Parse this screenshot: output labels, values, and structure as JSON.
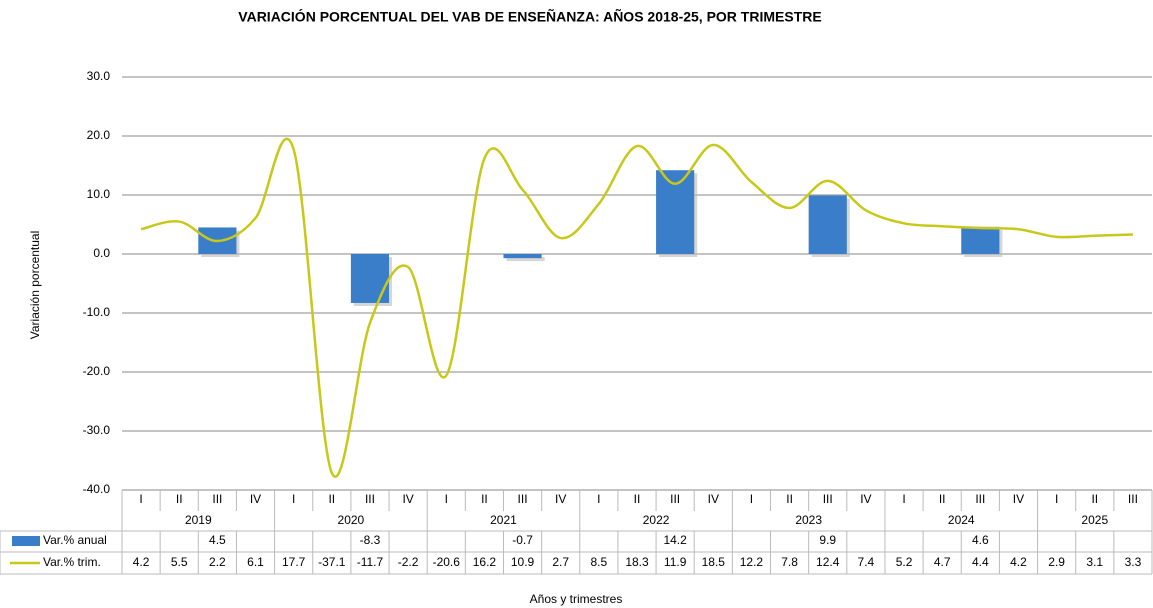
{
  "chart_data": {
    "type": "bar",
    "title": "VARIACIÓN PORCENTUAL DEL VAB DE ENSEÑANZA: AÑOS 2018-25, POR TRIMESTRE",
    "y_label": "Variación porcentual",
    "x_label": "Años y trimestres",
    "categories": [
      "I",
      "II",
      "III",
      "IV",
      "I",
      "II",
      "III",
      "IV",
      "I",
      "II",
      "III",
      "IV",
      "I",
      "II",
      "III",
      "IV",
      "I",
      "II",
      "III",
      "IV",
      "I",
      "II",
      "III",
      "IV",
      "I",
      "II",
      "III"
    ],
    "category_groups": [
      "2019",
      "2020",
      "2021",
      "2022",
      "2023",
      "2024",
      "2025"
    ],
    "series": [
      {
        "name": "Var.% anual",
        "type": "bar",
        "color": "#3a7dc9",
        "values": [
          null,
          null,
          4.5,
          null,
          null,
          null,
          -8.3,
          null,
          null,
          null,
          -0.7,
          null,
          null,
          null,
          14.2,
          null,
          null,
          null,
          9.9,
          null,
          null,
          null,
          4.6,
          null,
          null,
          null,
          null
        ]
      },
      {
        "name": "Var.% trim.",
        "type": "line",
        "color": "#c8c81a",
        "values": [
          4.2,
          5.5,
          2.2,
          6.1,
          17.7,
          -37.1,
          -11.7,
          -2.2,
          -20.6,
          16.2,
          10.9,
          2.7,
          8.5,
          18.3,
          11.9,
          18.5,
          12.2,
          7.8,
          12.4,
          7.4,
          5.2,
          4.7,
          4.4,
          4.2,
          2.9,
          3.1,
          3.3
        ]
      }
    ],
    "ylim": [
      -40,
      30
    ],
    "yticks": [
      {
        "value": -40,
        "label": "-40.0"
      },
      {
        "value": -30,
        "label": "-30.0"
      },
      {
        "value": -20,
        "label": "-20.0"
      },
      {
        "value": -10,
        "label": "-10.0"
      },
      {
        "value": 0,
        "label": "0.0"
      },
      {
        "value": 10,
        "label": "10.0"
      },
      {
        "value": 20,
        "label": "20.0"
      },
      {
        "value": 30,
        "label": "30.0"
      }
    ],
    "grid": true
  }
}
